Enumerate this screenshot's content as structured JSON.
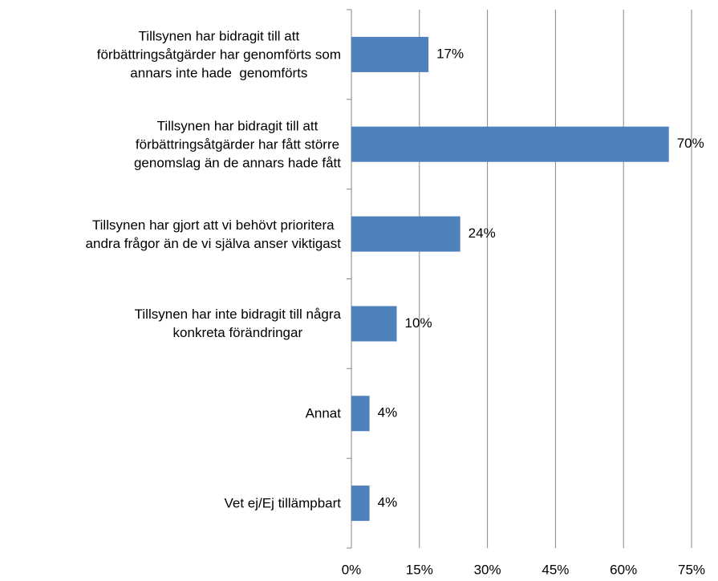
{
  "chart_data": {
    "type": "barh",
    "categories": [
      "Tillsynen har bidragit till att\nförbättringsåtgärder har genomförts som\nannars inte hade  genomförts",
      "Tillsynen har bidragit till att\nförbättringsåtgärder har fått större\ngenomslag än de annars hade fått",
      "Tillsynen har gjort att vi behövt prioritera\nandra frågor än de vi själva anser viktigast",
      "Tillsynen har inte bidragit till några\nkonkreta förändringar",
      "Annat",
      "Vet ej/Ej tillämpbart"
    ],
    "values": [
      17,
      70,
      24,
      10,
      4,
      4
    ],
    "value_labels": [
      "17%",
      "70%",
      "24%",
      "10%",
      "4%",
      "4%"
    ],
    "color": "#4f81bd",
    "xlim": [
      0,
      75
    ],
    "xticks": [
      {
        "value": 0,
        "label": "0%"
      },
      {
        "value": 15,
        "label": "15%"
      },
      {
        "value": 30,
        "label": "30%"
      },
      {
        "value": 45,
        "label": "45%"
      },
      {
        "value": 60,
        "label": "60%"
      },
      {
        "value": 75,
        "label": "75%"
      }
    ],
    "grid": true
  }
}
